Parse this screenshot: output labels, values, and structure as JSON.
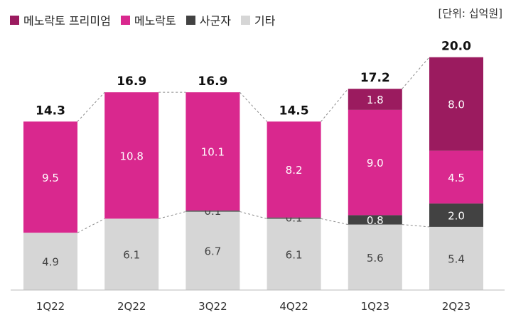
{
  "unit_label": "[단위: 십억원]",
  "colors": {
    "premium": "#9b1b5f",
    "menolacto": "#d9288e",
    "subsidiary": "#424242",
    "other": "#d6d6d6",
    "connector": "#8a8a8a"
  },
  "chart_data": {
    "type": "bar",
    "stacked": true,
    "categories": [
      "1Q22",
      "2Q22",
      "3Q22",
      "4Q22",
      "1Q23",
      "2Q23"
    ],
    "series": [
      {
        "name": "기타",
        "color": "#d6d6d6",
        "values": [
          4.9,
          6.1,
          6.7,
          6.1,
          5.6,
          5.4
        ],
        "labels": [
          "4.9",
          "6.1",
          "6.7",
          "6.1",
          "5.6",
          "5.4"
        ]
      },
      {
        "name": "사군자",
        "color": "#424242",
        "values": [
          0,
          0,
          0.1,
          0.1,
          0.8,
          2.0
        ],
        "labels": [
          "",
          "",
          "0.1",
          "0.1",
          "0.8",
          "2.0"
        ]
      },
      {
        "name": "메노락토",
        "color": "#d9288e",
        "values": [
          9.5,
          10.8,
          10.1,
          8.2,
          9.0,
          4.5
        ],
        "labels": [
          "9.5",
          "10.8",
          "10.1",
          "8.2",
          "9.0",
          "4.5"
        ]
      },
      {
        "name": "메노락토 프리미엄",
        "color": "#9b1b5f",
        "values": [
          0,
          0,
          0,
          0,
          1.8,
          8.0
        ],
        "labels": [
          "",
          "",
          "",
          "",
          "1.8",
          "8.0"
        ]
      }
    ],
    "legend_order": [
      "메노락토 프리미엄",
      "메노락토",
      "사군자",
      "기타"
    ],
    "totals": [
      "14.3",
      "16.9",
      "16.9",
      "14.5",
      "17.2",
      "20.0"
    ],
    "legend_position": "top-left"
  }
}
